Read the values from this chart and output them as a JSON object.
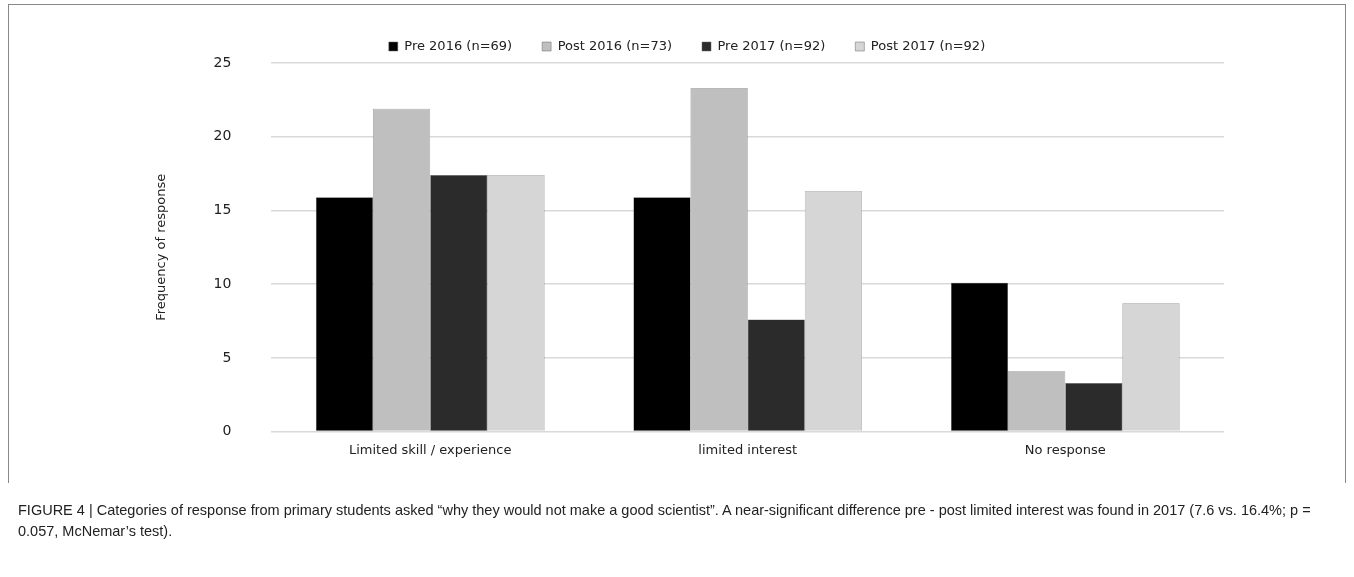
{
  "chart_data": {
    "type": "bar",
    "ylabel": "Frequency of response",
    "categories": [
      "Limited skill / experience",
      "limited interest",
      "No response"
    ],
    "series": [
      {
        "name": "Pre 2016 (n=69)",
        "color": "#000000",
        "values": [
          15.9,
          15.9,
          10.1
        ]
      },
      {
        "name": "Post 2016 (n=73)",
        "color": "#bfbfbf",
        "values": [
          21.9,
          23.3,
          4.1
        ]
      },
      {
        "name": "Pre 2017 (n=92)",
        "color": "#2b2b2b",
        "values": [
          17.4,
          7.6,
          3.3
        ]
      },
      {
        "name": "Post 2017 (n=92)",
        "color": "#d6d6d6",
        "values": [
          17.4,
          16.3,
          8.7
        ]
      }
    ],
    "ylim": [
      0,
      25
    ],
    "yticks": [
      0,
      5,
      10,
      15,
      20,
      25
    ],
    "grid": "y",
    "legend": "top",
    "annotations": [
      "FIGURE 4 | Categories of response from primary students asked “why they would not make a good scientist”. A near-significant difference pre - post limited interest was found in 2017 (7.6 vs. 16.4%; p = 0.057, McNemar’s test)."
    ]
  }
}
